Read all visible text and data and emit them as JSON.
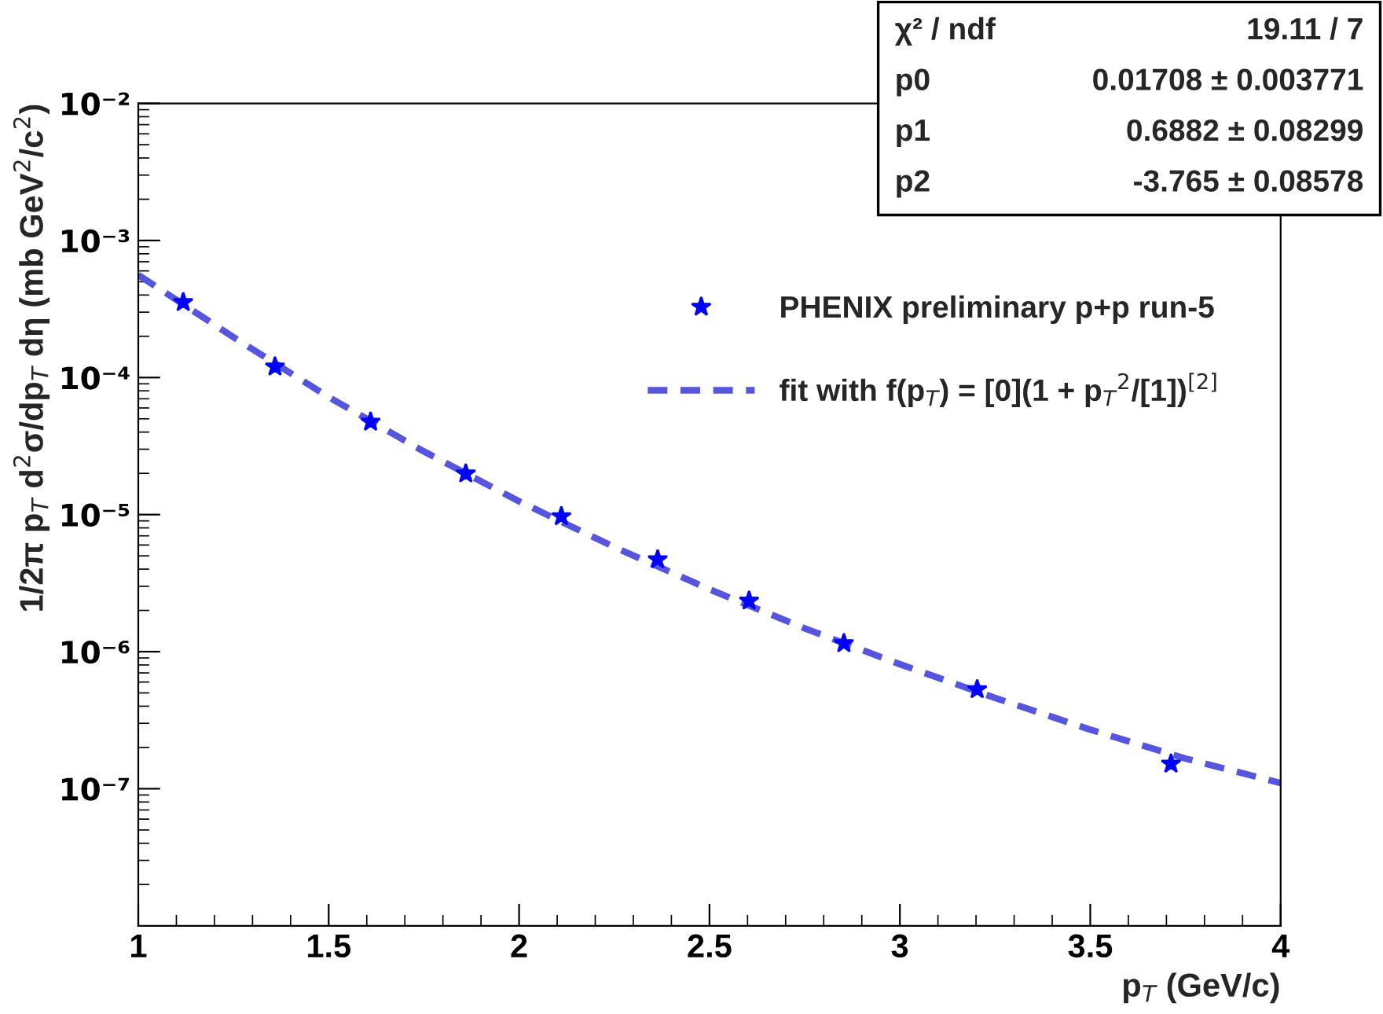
{
  "chart_data": {
    "type": "scatter",
    "xlabel": "p$_{T}$ (GeV/c)",
    "ylabel": "1/2π p$_{T}$ d$^{2}$σ/dp$_{T}$ dη (mb GeV$^{2}$/c$^{2}$)",
    "log": "y",
    "grid": false,
    "legend": "top right",
    "marker": "star",
    "xlim": [
      1,
      4
    ],
    "xticks": [
      1,
      1.5,
      2,
      2.5,
      3,
      3.5,
      4
    ],
    "ylim": [
      1e-08,
      0.01
    ],
    "yticks": [
      {
        "value": 1e-07,
        "label": "10⁻⁷"
      },
      {
        "value": 1e-06,
        "label": "10⁻⁶"
      },
      {
        "value": 1e-05,
        "label": "10⁻⁵"
      },
      {
        "value": 0.0001,
        "label": "10⁻⁴"
      },
      {
        "value": 0.001,
        "label": "10⁻³"
      },
      {
        "value": 0.01,
        "label": "10⁻²"
      }
    ],
    "series": [
      {
        "name": "PHENIX preliminary p+p run-5",
        "color": "#0000ff",
        "x": [
          1.118,
          1.359,
          1.61,
          1.86,
          2.111,
          2.364,
          2.604,
          2.853,
          3.203,
          3.712
        ],
        "values": [
          0.000354,
          0.00012,
          4.75e-05,
          1.99e-05,
          9.7e-06,
          4.7e-06,
          2.35e-06,
          1.15e-06,
          5.3e-07,
          1.52e-07
        ]
      },
      {
        "name": "fit with f(p$_{T}$) = [0](1 + p$_{T}$$^{2}$/[1])$^{[2]}$",
        "color": "#5555dd",
        "type": "line",
        "line_style": "dashed",
        "marker": "none",
        "x": [
          1.0,
          1.25,
          1.5,
          1.75,
          2.0,
          2.25,
          2.5,
          2.75,
          3.0,
          3.25,
          3.5,
          3.75,
          4.0
        ],
        "values": [
          0.00056,
          0.000197,
          7.2e-05,
          2.89e-05,
          1.25e-05,
          5.8e-06,
          2.85e-06,
          1.48e-06,
          8.1e-07,
          4.6e-07,
          2.7e-07,
          1.66e-07,
          1.1e-07
        ]
      }
    ],
    "annotations": [
      "χ² / ndf",
      "19.11 / 7",
      "p0",
      "0.01708 ± 0.003771",
      "p1",
      "0.6882 ± 0.08299",
      "p2",
      "-3.765 ± 0.08578"
    ]
  }
}
